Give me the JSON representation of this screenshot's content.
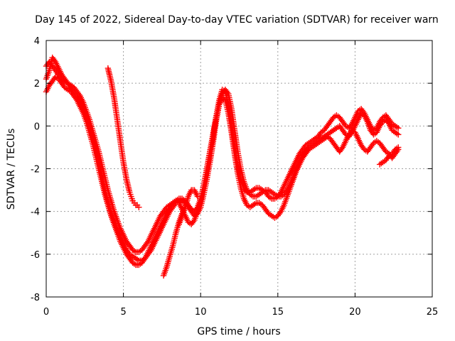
{
  "chart_data": {
    "type": "scatter",
    "title": "Day 145 of 2022, Sidereal Day-to-day VTEC variation (SDTVAR) for receiver warn",
    "xlabel": "GPS time / hours",
    "ylabel": "SDTVAR / TECUs",
    "xlim": [
      0,
      25
    ],
    "ylim": [
      -8,
      4
    ],
    "xticks": [
      "0",
      "5",
      "10",
      "15",
      "20",
      "25"
    ],
    "yticks": [
      "-8",
      "-6",
      "-4",
      "-2",
      "0",
      "2",
      "4"
    ],
    "grid": true,
    "marker": "+",
    "color": "#ff0000",
    "series": [
      {
        "x": [
          0.0,
          0.2,
          0.4,
          0.6,
          0.8,
          1.0,
          1.2,
          1.4,
          1.6,
          1.8,
          2.0,
          2.2,
          2.4,
          2.6,
          2.8,
          3.0,
          3.2,
          3.4,
          3.6,
          3.8,
          4.0,
          4.2,
          4.4,
          4.6,
          4.8,
          5.0,
          5.2,
          5.4,
          5.6,
          5.8,
          6.0,
          6.2,
          6.4,
          6.6,
          6.8,
          7.0,
          7.2,
          7.4,
          7.6,
          7.8,
          8.0,
          8.2,
          8.4,
          8.6,
          8.8,
          9.0,
          9.2,
          9.4,
          9.6,
          9.8,
          10.0,
          10.2,
          10.4,
          10.6,
          10.8,
          11.0,
          11.2,
          11.4,
          11.6,
          11.8,
          12.0,
          12.2,
          12.4,
          12.6,
          12.8,
          13.0,
          13.2,
          13.4,
          13.6,
          13.8,
          14.0,
          14.2,
          14.4,
          14.6,
          14.8,
          15.0,
          15.2,
          15.4,
          15.6,
          15.8,
          16.0,
          16.2,
          16.4,
          16.6,
          16.8,
          17.0,
          17.2,
          17.4,
          17.6,
          17.8,
          18.0,
          18.2,
          18.4,
          18.6,
          18.8,
          19.0,
          19.2,
          19.4,
          19.6,
          19.8,
          20.0,
          20.2,
          20.4,
          20.6,
          20.8,
          21.0,
          21.2,
          21.4,
          21.6,
          21.8,
          22.0,
          22.2,
          22.4,
          22.6,
          22.8
        ],
        "y": [
          2.8,
          3.0,
          2.8,
          2.6,
          2.4,
          2.2,
          2.1,
          2.0,
          1.8,
          1.6,
          1.4,
          1.1,
          0.8,
          0.4,
          0.0,
          -0.5,
          -1.0,
          -1.6,
          -2.3,
          -3.0,
          -3.6,
          -4.1,
          -4.5,
          -4.9,
          -5.2,
          -5.5,
          -5.8,
          -6.0,
          -6.1,
          -6.2,
          -6.3,
          -6.3,
          -6.2,
          -6.0,
          -5.8,
          -5.5,
          -5.2,
          -4.9,
          -4.6,
          -4.3,
          -4.0,
          -3.8,
          -3.6,
          -3.5,
          -3.5,
          -3.6,
          -3.8,
          -4.0,
          -4.2,
          -4.1,
          -3.8,
          -3.2,
          -2.5,
          -1.7,
          -0.8,
          0.2,
          1.0,
          1.5,
          1.7,
          1.5,
          0.8,
          -0.2,
          -1.2,
          -2.0,
          -2.6,
          -3.0,
          -3.2,
          -3.3,
          -3.3,
          -3.2,
          -3.1,
          -3.0,
          -3.0,
          -3.1,
          -3.2,
          -3.3,
          -3.3,
          -3.2,
          -3.0,
          -2.7,
          -2.4,
          -2.0,
          -1.7,
          -1.4,
          -1.2,
          -1.0,
          -0.9,
          -0.8,
          -0.7,
          -0.6,
          -0.5,
          -0.4,
          -0.3,
          -0.2,
          -0.1,
          0.0,
          -0.2,
          -0.4,
          -0.5,
          -0.3,
          0.0,
          0.3,
          0.6,
          0.5,
          0.2,
          -0.2,
          -0.4,
          -0.3,
          0.0,
          0.2,
          0.3,
          0.1,
          -0.2,
          -0.3,
          -0.4
        ]
      },
      {
        "x": [
          0.0,
          0.2,
          0.4,
          0.6,
          0.8,
          1.0,
          1.2,
          1.4,
          1.6,
          1.8,
          2.0,
          2.2,
          2.4,
          2.6,
          2.8,
          3.0,
          3.2,
          3.4,
          3.6,
          3.8,
          4.0,
          4.2,
          4.4,
          4.6,
          4.8,
          5.0,
          5.2,
          5.4,
          5.6,
          5.8,
          6.0,
          6.2,
          6.4,
          6.6,
          6.8,
          7.0,
          7.2,
          7.4,
          7.6,
          7.8,
          8.0,
          8.2,
          8.4,
          8.6,
          8.8,
          9.0,
          9.2,
          9.4,
          9.6,
          9.8,
          10.0,
          10.2,
          10.4,
          10.6,
          10.8,
          11.0,
          11.2,
          11.4,
          11.6,
          11.8,
          12.0,
          12.2,
          12.4,
          12.6,
          12.8,
          13.0,
          13.2,
          13.4,
          13.6,
          13.8,
          14.0,
          14.2,
          14.4,
          14.6,
          14.8,
          15.0,
          15.2,
          15.4,
          15.6,
          15.8,
          16.0,
          16.2,
          16.4,
          16.6,
          16.8,
          17.0,
          17.2,
          17.4,
          17.6,
          17.8,
          18.0,
          18.2,
          18.4,
          18.6,
          18.8,
          19.0,
          19.2,
          19.4,
          19.6,
          19.8,
          20.0,
          20.2,
          20.4,
          20.6,
          20.8,
          21.0,
          21.2,
          21.4,
          21.6,
          21.8,
          22.0,
          22.2,
          22.4,
          22.6,
          22.8
        ],
        "y": [
          1.6,
          1.9,
          2.1,
          2.3,
          2.2,
          2.0,
          1.8,
          1.7,
          1.6,
          1.4,
          1.2,
          0.9,
          0.6,
          0.2,
          -0.3,
          -0.8,
          -1.4,
          -2.0,
          -2.6,
          -3.2,
          -3.7,
          -4.2,
          -4.6,
          -5.0,
          -5.4,
          -5.7,
          -6.0,
          -6.2,
          -6.4,
          -6.5,
          -6.5,
          -6.4,
          -6.2,
          -5.9,
          -5.6,
          -5.3,
          -5.0,
          -4.7,
          -4.4,
          -4.1,
          -3.8,
          -3.6,
          -3.5,
          -3.6,
          -3.9,
          -4.2,
          -4.5,
          -4.6,
          -4.4,
          -4.0,
          -3.5,
          -2.8,
          -2.0,
          -1.2,
          -0.4,
          0.4,
          1.0,
          1.3,
          1.2,
          0.6,
          -0.3,
          -1.3,
          -2.2,
          -2.9,
          -3.4,
          -3.7,
          -3.8,
          -3.7,
          -3.6,
          -3.6,
          -3.7,
          -3.9,
          -4.1,
          -4.2,
          -4.3,
          -4.2,
          -4.0,
          -3.7,
          -3.3,
          -2.9,
          -2.5,
          -2.1,
          -1.8,
          -1.5,
          -1.3,
          -1.1,
          -1.0,
          -0.9,
          -0.8,
          -0.7,
          -0.6,
          -0.5,
          -0.6,
          -0.8,
          -1.0,
          -1.2,
          -1.0,
          -0.7,
          -0.4,
          -0.2,
          -0.3,
          -0.6,
          -0.9,
          -1.1,
          -1.2,
          -1.0,
          -0.8,
          -0.7,
          -0.8,
          -1.0,
          -1.2,
          -1.3,
          -1.5,
          -1.3,
          -1.1
        ]
      },
      {
        "x": [
          0.0,
          0.2,
          0.4,
          0.6,
          0.8,
          1.0,
          1.2,
          1.4,
          1.6,
          1.8,
          2.0,
          2.2,
          2.4,
          2.6,
          2.8,
          3.0,
          3.2,
          3.4,
          3.6,
          3.8,
          4.0,
          4.2,
          4.4,
          4.6,
          4.8,
          5.0,
          5.2,
          5.4,
          5.6,
          5.8,
          6.0,
          6.2,
          6.4,
          6.6,
          6.8,
          7.0,
          7.2,
          7.4,
          7.6,
          7.8,
          8.0,
          8.2,
          8.4,
          8.6,
          8.8,
          9.0,
          9.2,
          9.4,
          9.6,
          9.8,
          10.0,
          10.2,
          10.4,
          10.6,
          10.8,
          11.0,
          11.2,
          11.4,
          11.6,
          11.8,
          12.0,
          12.2,
          12.4,
          12.6,
          12.8,
          13.0,
          13.2,
          13.4,
          13.6,
          13.8,
          14.0,
          14.2,
          14.4,
          14.6,
          14.8,
          15.0,
          15.2,
          15.4,
          15.6,
          15.8,
          16.0,
          16.2,
          16.4,
          16.6,
          16.8,
          17.0,
          17.2,
          17.4,
          17.6,
          17.8,
          18.0,
          18.2,
          18.4,
          18.6,
          18.8,
          19.0,
          19.2,
          19.4,
          19.6,
          19.8,
          20.0,
          20.2,
          20.4,
          20.6,
          20.8,
          21.0,
          21.2,
          21.4,
          21.6,
          21.8,
          22.0,
          22.2,
          22.4,
          22.6,
          22.8
        ],
        "y": [
          2.2,
          2.6,
          3.2,
          3.0,
          2.7,
          2.4,
          2.2,
          2.0,
          1.9,
          1.8,
          1.6,
          1.4,
          1.1,
          0.7,
          0.3,
          -0.2,
          -0.7,
          -1.2,
          -1.8,
          -2.4,
          -3.0,
          -3.5,
          -4.0,
          -4.4,
          -4.8,
          -5.1,
          -5.4,
          -5.6,
          -5.8,
          -5.9,
          -5.9,
          -5.8,
          -5.6,
          -5.4,
          -5.1,
          -4.8,
          -4.5,
          -4.2,
          -4.0,
          -3.8,
          -3.7,
          -3.6,
          -3.5,
          -3.4,
          -3.4,
          -3.5,
          -3.7,
          -3.9,
          -4.0,
          -3.8,
          -3.4,
          -2.8,
          -2.1,
          -1.3,
          -0.5,
          0.4,
          1.2,
          1.7,
          1.6,
          1.0,
          0.1,
          -0.9,
          -1.8,
          -2.5,
          -2.9,
          -3.1,
          -3.1,
          -3.0,
          -2.9,
          -2.9,
          -3.0,
          -3.1,
          -3.3,
          -3.4,
          -3.4,
          -3.3,
          -3.1,
          -2.8,
          -2.5,
          -2.2,
          -1.9,
          -1.6,
          -1.3,
          -1.1,
          -0.9,
          -0.8,
          -0.7,
          -0.6,
          -0.5,
          -0.3,
          -0.2,
          0.0,
          0.2,
          0.4,
          0.5,
          0.4,
          0.2,
          0.0,
          -0.1,
          0.1,
          0.4,
          0.7,
          0.8,
          0.6,
          0.3,
          0.0,
          -0.2,
          -0.1,
          0.2,
          0.4,
          0.5,
          0.3,
          0.1,
          0.0,
          -0.1
        ]
      },
      {
        "x": [
          4.0,
          4.1,
          4.2,
          4.3,
          4.4,
          4.5,
          4.6,
          4.7,
          4.8,
          4.9,
          5.0,
          5.1,
          5.2,
          5.3,
          5.4,
          5.5,
          5.6,
          5.7,
          5.8,
          5.9,
          6.0
        ],
        "y": [
          2.7,
          2.4,
          2.1,
          1.7,
          1.3,
          0.8,
          0.3,
          -0.2,
          -0.7,
          -1.2,
          -1.7,
          -2.1,
          -2.5,
          -2.8,
          -3.1,
          -3.3,
          -3.5,
          -3.6,
          -3.7,
          -3.7,
          -3.8
        ]
      },
      {
        "x": [
          7.6,
          7.8,
          8.0,
          8.2,
          8.4,
          8.6,
          8.8,
          9.0
        ],
        "y": [
          -7.0,
          -6.6,
          -6.1,
          -5.6,
          -5.0,
          -4.5,
          -4.1,
          -3.8
        ]
      },
      {
        "x": [
          8.6,
          8.8,
          9.0,
          9.2,
          9.4,
          9.6,
          9.8
        ],
        "y": [
          -4.6,
          -4.2,
          -3.8,
          -3.3,
          -3.0,
          -3.0,
          -3.3
        ]
      },
      {
        "x": [
          21.6,
          21.8,
          22.0,
          22.2,
          22.4,
          22.6,
          22.8
        ],
        "y": [
          -1.8,
          -1.7,
          -1.6,
          -1.4,
          -1.3,
          -1.1,
          -1.0
        ]
      }
    ]
  }
}
